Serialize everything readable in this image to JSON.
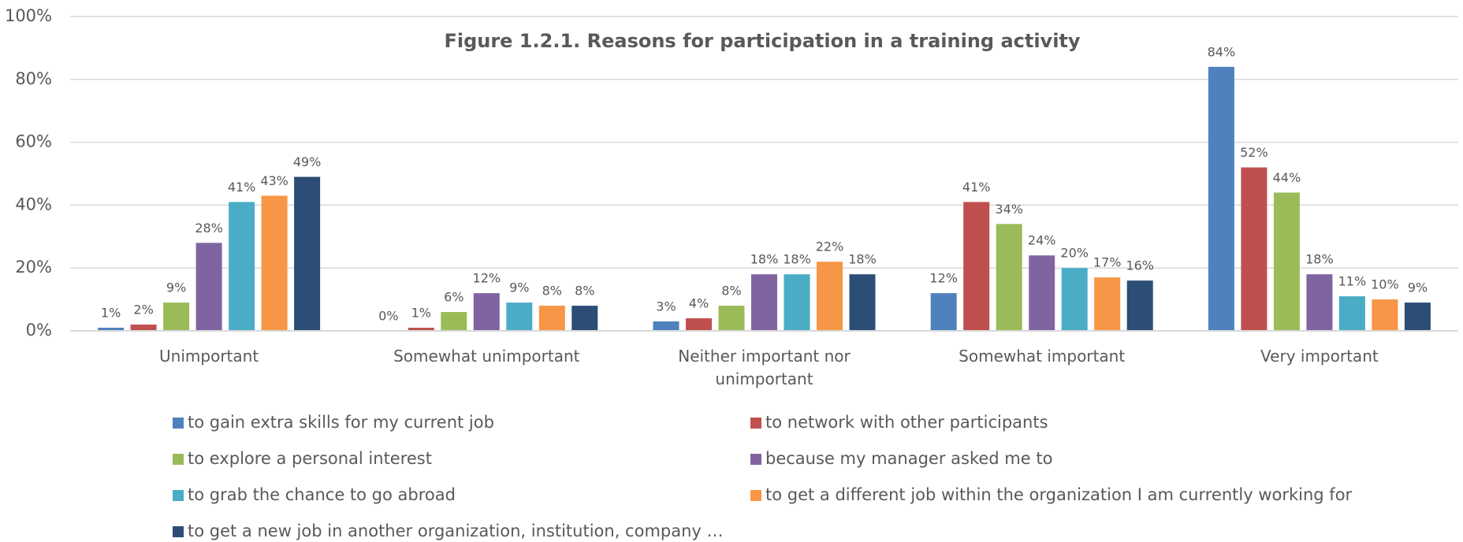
{
  "chart_data": {
    "type": "bar",
    "title": "Figure 1.2.1. Reasons for participation in a training activity",
    "categories": [
      "Unimportant",
      "Somewhat unimportant",
      "Neither important nor unimportant",
      "Somewhat important",
      "Very important"
    ],
    "series": [
      {
        "name": "to gain extra skills for my current job",
        "color": "#4f81bd",
        "values": [
          1,
          0,
          3,
          12,
          84
        ],
        "value_labels": [
          "1%",
          "0%",
          "3%",
          "12%",
          "84%"
        ]
      },
      {
        "name": "to network with other participants",
        "color": "#c0504d",
        "values": [
          2,
          1,
          4,
          41,
          52
        ],
        "value_labels": [
          "2%",
          "1%",
          "4%",
          "41%",
          "52%"
        ]
      },
      {
        "name": "to explore a personal interest",
        "color": "#9bbb59",
        "values": [
          9,
          6,
          8,
          34,
          44
        ],
        "value_labels": [
          "9%",
          "6%",
          "8%",
          "34%",
          "44%"
        ]
      },
      {
        "name": "because my manager asked me to",
        "color": "#8064a2",
        "values": [
          28,
          12,
          18,
          24,
          18
        ],
        "value_labels": [
          "28%",
          "12%",
          "18%",
          "24%",
          "18%"
        ]
      },
      {
        "name": "to grab the chance to go abroad",
        "color": "#4bacc6",
        "values": [
          41,
          9,
          18,
          20,
          11
        ],
        "value_labels": [
          "41%",
          "9%",
          "18%",
          "20%",
          "11%"
        ]
      },
      {
        "name": "to get a different job within the organization I am currently working for",
        "color": "#f79646",
        "values": [
          43,
          8,
          22,
          17,
          10
        ],
        "value_labels": [
          "43%",
          "8%",
          "22%",
          "17%",
          "10%"
        ]
      },
      {
        "name": "to get a new job in another organization, institution, company …",
        "color": "#2c4d75",
        "values": [
          49,
          8,
          18,
          16,
          9
        ],
        "value_labels": [
          "49%",
          "8%",
          "18%",
          "16%",
          "9%"
        ]
      }
    ],
    "ylim": [
      0,
      100
    ],
    "yticks": [
      {
        "value": 0,
        "label": "0%"
      },
      {
        "value": 20,
        "label": "20%"
      },
      {
        "value": 40,
        "label": "40%"
      },
      {
        "value": 60,
        "label": "60%"
      },
      {
        "value": 80,
        "label": "80%"
      },
      {
        "value": 100,
        "label": "100%"
      }
    ],
    "grid": true
  }
}
